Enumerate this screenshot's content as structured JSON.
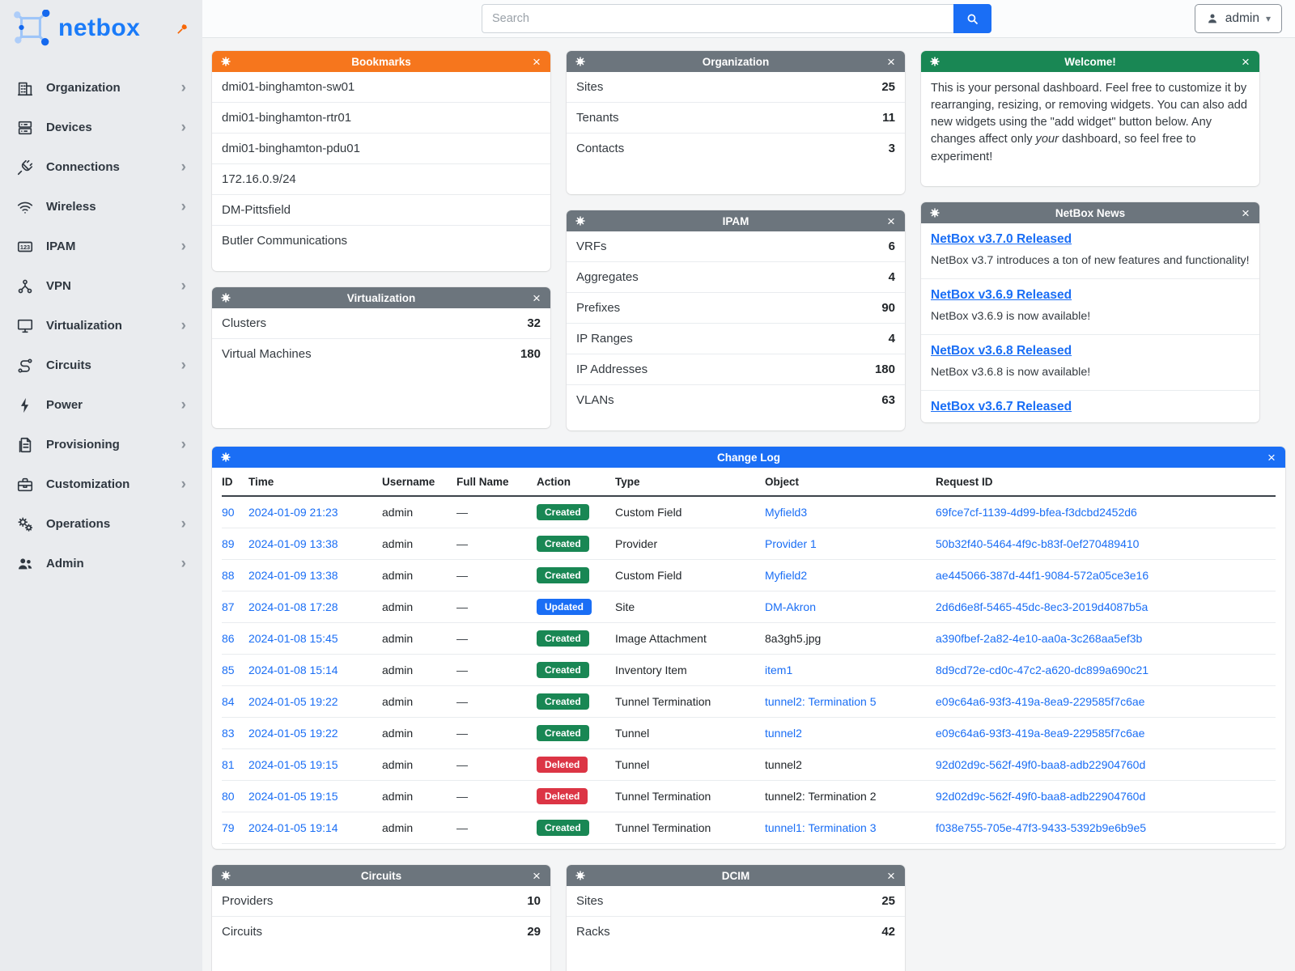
{
  "brand": {
    "name": "netbox"
  },
  "topbar": {
    "search_placeholder": "Search",
    "user": "admin"
  },
  "colors": {
    "brand_blue": "#1a7bf9",
    "accent_orange": "#f6761d",
    "header_gray": "#6c757d",
    "header_green": "#198754",
    "header_blue": "#1a6ef5",
    "link_blue": "#1a6ef5",
    "badge_created": "#198754",
    "badge_updated": "#1a6ef5",
    "badge_deleted": "#dc3545"
  },
  "sidebar": {
    "items": [
      {
        "label": "Organization",
        "icon": "building"
      },
      {
        "label": "Devices",
        "icon": "server"
      },
      {
        "label": "Connections",
        "icon": "plug"
      },
      {
        "label": "Wireless",
        "icon": "wifi"
      },
      {
        "label": "IPAM",
        "icon": "ipam"
      },
      {
        "label": "VPN",
        "icon": "vpn"
      },
      {
        "label": "Virtualization",
        "icon": "monitor"
      },
      {
        "label": "Circuits",
        "icon": "circuits"
      },
      {
        "label": "Power",
        "icon": "bolt"
      },
      {
        "label": "Provisioning",
        "icon": "document"
      },
      {
        "label": "Customization",
        "icon": "briefcase"
      },
      {
        "label": "Operations",
        "icon": "gears"
      },
      {
        "label": "Admin",
        "icon": "users"
      }
    ]
  },
  "widgets": {
    "bookmarks": {
      "title": "Bookmarks",
      "items": [
        {
          "label": "dmi01-binghamton-sw01"
        },
        {
          "label": "dmi01-binghamton-rtr01"
        },
        {
          "label": "dmi01-binghamton-pdu01"
        },
        {
          "label": "172.16.0.9/24"
        },
        {
          "label": "DM-Pittsfield"
        },
        {
          "label": "Butler Communications"
        }
      ]
    },
    "virtualization": {
      "title": "Virtualization",
      "rows": [
        {
          "label": "Clusters",
          "value": "32"
        },
        {
          "label": "Virtual Machines",
          "value": "180"
        }
      ]
    },
    "organization": {
      "title": "Organization",
      "rows": [
        {
          "label": "Sites",
          "value": "25"
        },
        {
          "label": "Tenants",
          "value": "11"
        },
        {
          "label": "Contacts",
          "value": "3"
        }
      ]
    },
    "ipam": {
      "title": "IPAM",
      "rows": [
        {
          "label": "VRFs",
          "value": "6"
        },
        {
          "label": "Aggregates",
          "value": "4"
        },
        {
          "label": "Prefixes",
          "value": "90"
        },
        {
          "label": "IP Ranges",
          "value": "4"
        },
        {
          "label": "IP Addresses",
          "value": "180"
        },
        {
          "label": "VLANs",
          "value": "63"
        }
      ]
    },
    "welcome": {
      "title": "Welcome!",
      "text1": "This is your personal dashboard. Feel free to customize it by rearranging, resizing, or removing widgets. You can also add new widgets using the \"add widget\" button below. Any changes affect only ",
      "italic": "your",
      "text2": " dashboard, so feel free to experiment!"
    },
    "news": {
      "title": "NetBox News",
      "items": [
        {
          "title": "NetBox v3.7.0 Released",
          "desc": "NetBox v3.7 introduces a ton of new features and functionality!"
        },
        {
          "title": "NetBox v3.6.9 Released",
          "desc": "NetBox v3.6.9 is now available!"
        },
        {
          "title": "NetBox v3.6.8 Released",
          "desc": "NetBox v3.6.8 is now available!"
        },
        {
          "title": "NetBox v3.6.7 Released",
          "desc": ""
        }
      ]
    },
    "changelog": {
      "title": "Change Log",
      "columns": [
        "ID",
        "Time",
        "Username",
        "Full Name",
        "Action",
        "Type",
        "Object",
        "Request ID"
      ],
      "rows": [
        {
          "id": "90",
          "time": "2024-01-09 21:23",
          "username": "admin",
          "full_name": "—",
          "action": "Created",
          "badge": "created",
          "type": "Custom Field",
          "object": "Myfield3",
          "object_style": "link",
          "request_id": "69fce7cf-1139-4d99-bfea-f3dcbd2452d6"
        },
        {
          "id": "89",
          "time": "2024-01-09 13:38",
          "username": "admin",
          "full_name": "—",
          "action": "Created",
          "badge": "created",
          "type": "Provider",
          "object": "Provider 1",
          "object_style": "link",
          "request_id": "50b32f40-5464-4f9c-b83f-0ef270489410"
        },
        {
          "id": "88",
          "time": "2024-01-09 13:38",
          "username": "admin",
          "full_name": "—",
          "action": "Created",
          "badge": "created",
          "type": "Custom Field",
          "object": "Myfield2",
          "object_style": "link",
          "request_id": "ae445066-387d-44f1-9084-572a05ce3e16"
        },
        {
          "id": "87",
          "time": "2024-01-08 17:28",
          "username": "admin",
          "full_name": "—",
          "action": "Updated",
          "badge": "updated",
          "type": "Site",
          "object": "DM-Akron",
          "object_style": "link",
          "request_id": "2d6d6e8f-5465-45dc-8ec3-2019d4087b5a"
        },
        {
          "id": "86",
          "time": "2024-01-08 15:45",
          "username": "admin",
          "full_name": "—",
          "action": "Created",
          "badge": "created",
          "type": "Image Attachment",
          "object": "8a3gh5.jpg",
          "object_style": "plain",
          "request_id": "a390fbef-2a82-4e10-aa0a-3c268aa5ef3b"
        },
        {
          "id": "85",
          "time": "2024-01-08 15:14",
          "username": "admin",
          "full_name": "—",
          "action": "Created",
          "badge": "created",
          "type": "Inventory Item",
          "object": "item1",
          "object_style": "link",
          "request_id": "8d9cd72e-cd0c-47c2-a620-dc899a690c21"
        },
        {
          "id": "84",
          "time": "2024-01-05 19:22",
          "username": "admin",
          "full_name": "—",
          "action": "Created",
          "badge": "created",
          "type": "Tunnel Termination",
          "object": "tunnel2: Termination 5",
          "object_style": "link",
          "request_id": "e09c64a6-93f3-419a-8ea9-229585f7c6ae"
        },
        {
          "id": "83",
          "time": "2024-01-05 19:22",
          "username": "admin",
          "full_name": "—",
          "action": "Created",
          "badge": "created",
          "type": "Tunnel",
          "object": "tunnel2",
          "object_style": "link",
          "request_id": "e09c64a6-93f3-419a-8ea9-229585f7c6ae"
        },
        {
          "id": "81",
          "time": "2024-01-05 19:15",
          "username": "admin",
          "full_name": "—",
          "action": "Deleted",
          "badge": "deleted",
          "type": "Tunnel",
          "object": "tunnel2",
          "object_style": "plain",
          "request_id": "92d02d9c-562f-49f0-baa8-adb22904760d"
        },
        {
          "id": "80",
          "time": "2024-01-05 19:15",
          "username": "admin",
          "full_name": "—",
          "action": "Deleted",
          "badge": "deleted",
          "type": "Tunnel Termination",
          "object": "tunnel2: Termination 2",
          "object_style": "plain",
          "request_id": "92d02d9c-562f-49f0-baa8-adb22904760d"
        },
        {
          "id": "79",
          "time": "2024-01-05 19:14",
          "username": "admin",
          "full_name": "—",
          "action": "Created",
          "badge": "created",
          "type": "Tunnel Termination",
          "object": "tunnel1: Termination 3",
          "object_style": "link",
          "request_id": "f038e755-705e-47f3-9433-5392b9e6b9e5"
        }
      ]
    },
    "circuits": {
      "title": "Circuits",
      "rows": [
        {
          "label": "Providers",
          "value": "10"
        },
        {
          "label": "Circuits",
          "value": "29"
        }
      ]
    },
    "dcim": {
      "title": "DCIM",
      "rows": [
        {
          "label": "Sites",
          "value": "25"
        },
        {
          "label": "Racks",
          "value": "42"
        }
      ]
    }
  }
}
